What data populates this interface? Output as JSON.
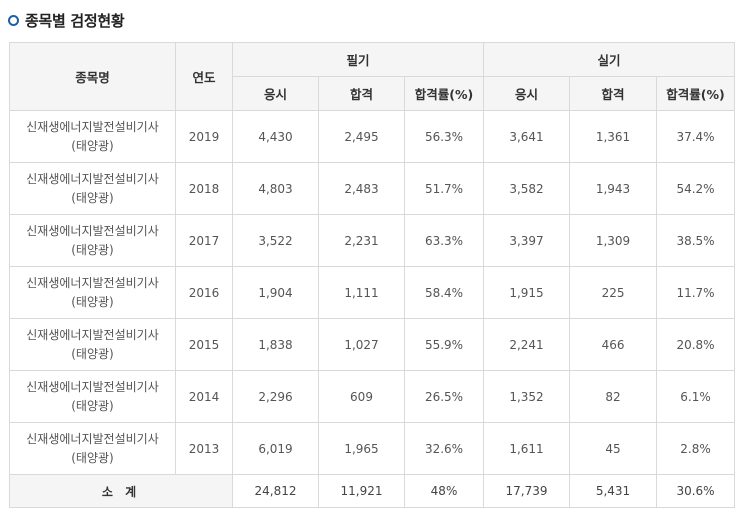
{
  "title": "종목별 검정현황",
  "headers": {
    "item": "종목명",
    "year": "연도",
    "written": "필기",
    "practical": "실기",
    "applied": "응시",
    "passed": "합격",
    "rate": "합격률(%)"
  },
  "rows": [
    {
      "name_line1": "신재생에너지발전설비기사",
      "name_line2": "(태양광)",
      "year": "2019",
      "w_applied": "4,430",
      "w_passed": "2,495",
      "w_rate": "56.3%",
      "p_applied": "3,641",
      "p_passed": "1,361",
      "p_rate": "37.4%"
    },
    {
      "name_line1": "신재생에너지발전설비기사",
      "name_line2": "(태양광)",
      "year": "2018",
      "w_applied": "4,803",
      "w_passed": "2,483",
      "w_rate": "51.7%",
      "p_applied": "3,582",
      "p_passed": "1,943",
      "p_rate": "54.2%"
    },
    {
      "name_line1": "신재생에너지발전설비기사",
      "name_line2": "(태양광)",
      "year": "2017",
      "w_applied": "3,522",
      "w_passed": "2,231",
      "w_rate": "63.3%",
      "p_applied": "3,397",
      "p_passed": "1,309",
      "p_rate": "38.5%"
    },
    {
      "name_line1": "신재생에너지발전설비기사",
      "name_line2": "(태양광)",
      "year": "2016",
      "w_applied": "1,904",
      "w_passed": "1,111",
      "w_rate": "58.4%",
      "p_applied": "1,915",
      "p_passed": "225",
      "p_rate": "11.7%"
    },
    {
      "name_line1": "신재생에너지발전설비기사",
      "name_line2": "(태양광)",
      "year": "2015",
      "w_applied": "1,838",
      "w_passed": "1,027",
      "w_rate": "55.9%",
      "p_applied": "2,241",
      "p_passed": "466",
      "p_rate": "20.8%"
    },
    {
      "name_line1": "신재생에너지발전설비기사",
      "name_line2": "(태양광)",
      "year": "2014",
      "w_applied": "2,296",
      "w_passed": "609",
      "w_rate": "26.5%",
      "p_applied": "1,352",
      "p_passed": "82",
      "p_rate": "6.1%"
    },
    {
      "name_line1": "신재생에너지발전설비기사",
      "name_line2": "(태양광)",
      "year": "2013",
      "w_applied": "6,019",
      "w_passed": "1,965",
      "w_rate": "32.6%",
      "p_applied": "1,611",
      "p_passed": "45",
      "p_rate": "2.8%"
    }
  ],
  "total": {
    "label": "소 계",
    "w_applied": "24,812",
    "w_passed": "11,921",
    "w_rate": "48%",
    "p_applied": "17,739",
    "p_passed": "5,431",
    "p_rate": "30.6%"
  },
  "colors": {
    "accent": "#1f5fa8",
    "header_bg": "#f5f5f5",
    "border": "#d9d9d9"
  }
}
